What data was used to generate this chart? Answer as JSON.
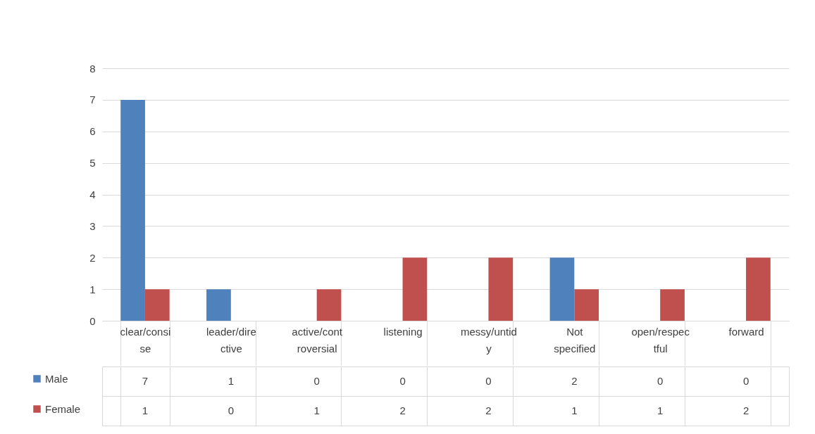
{
  "chart_data": {
    "type": "bar",
    "categories": [
      "clear/consise",
      "leader/directive",
      "active/controversial",
      "listening",
      "messy/untidy",
      "Not specified",
      "open/respectful",
      "forward"
    ],
    "series": [
      {
        "name": "Male",
        "color": "#4f81bd",
        "values": [
          7,
          1,
          0,
          0,
          0,
          2,
          0,
          0
        ]
      },
      {
        "name": "Female",
        "color": "#c0504d",
        "values": [
          1,
          0,
          1,
          2,
          2,
          1,
          1,
          2
        ]
      }
    ],
    "ylim": [
      0,
      8
    ],
    "yticks": [
      0,
      1,
      2,
      3,
      4,
      5,
      6,
      7,
      8
    ],
    "grid": "y",
    "legend": "bottom left",
    "data_labels": true
  }
}
